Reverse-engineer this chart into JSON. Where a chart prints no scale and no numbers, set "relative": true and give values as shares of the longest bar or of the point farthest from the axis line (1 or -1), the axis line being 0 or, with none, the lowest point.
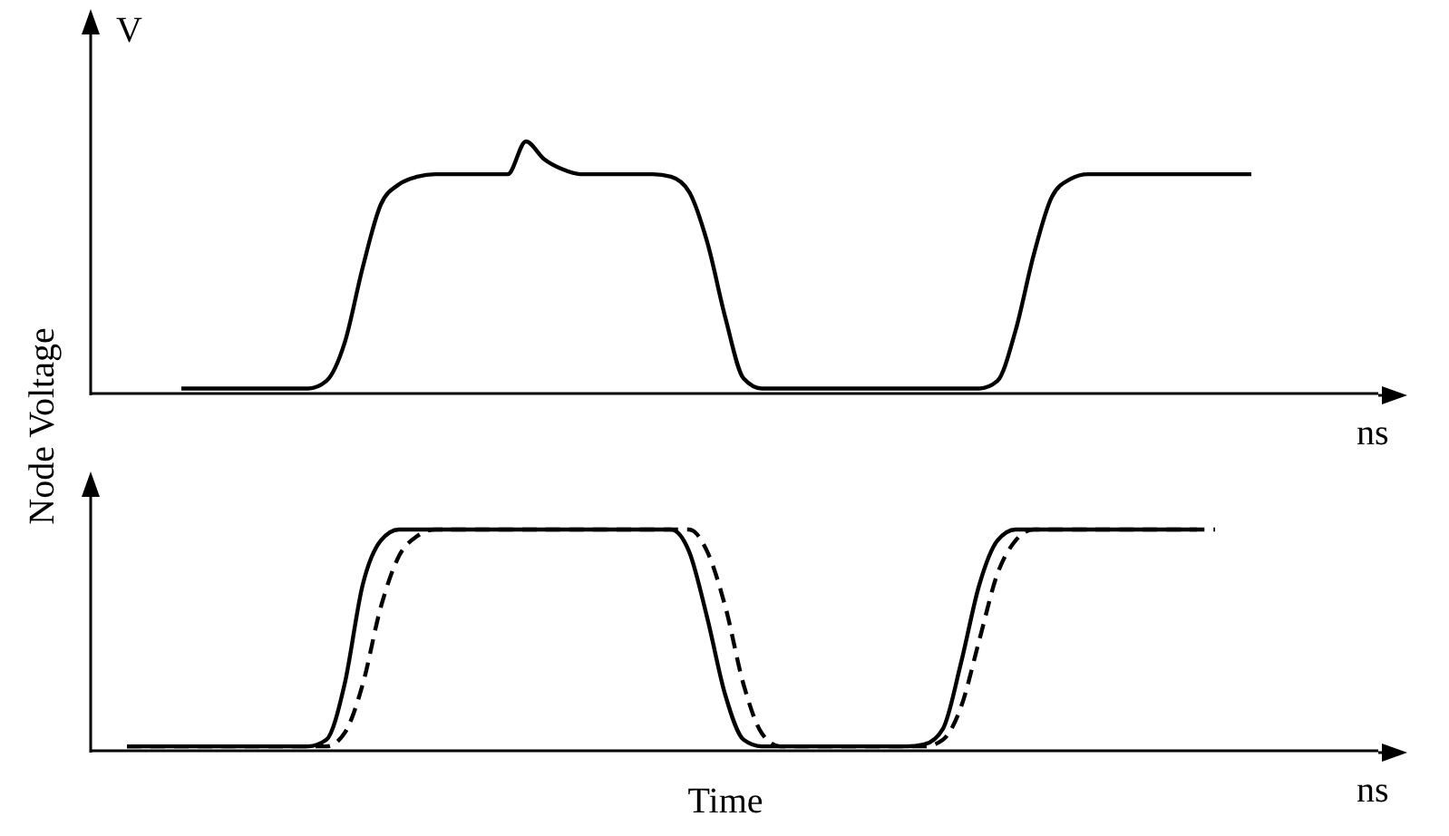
{
  "chart_data": [
    {
      "type": "line",
      "relative": true,
      "marker": "none",
      "xlabel": "ns",
      "ylabel": "Node Voltage",
      "annotations": [
        "V"
      ],
      "categories": [
        null,
        null,
        null,
        null,
        null,
        null,
        null,
        null,
        null,
        null,
        null,
        null,
        null,
        null,
        null,
        null,
        null,
        null,
        null,
        null,
        null,
        null,
        null,
        null,
        null,
        null,
        null,
        null,
        null,
        null,
        null,
        null,
        null,
        null,
        null,
        null,
        null,
        null,
        null,
        null,
        null,
        null,
        null,
        null,
        null,
        null,
        null,
        null,
        null,
        null,
        null,
        null,
        null,
        null,
        null,
        null,
        null,
        null,
        null,
        null,
        null,
        null,
        null,
        null,
        null,
        null,
        null,
        null,
        null,
        null
      ],
      "series": [
        {
          "color": "#000000",
          "line_style": "solid",
          "values": [
            null,
            null,
            null,
            null,
            0.02,
            0.02,
            0.02,
            0.02,
            0.02,
            0.02,
            0.02,
            0.02,
            0.05,
            0.2,
            0.5,
            0.75,
            0.83,
            0.86,
            0.87,
            0.87,
            0.87,
            0.87,
            0.87,
            1,
            0.93,
            0.89,
            0.87,
            0.87,
            0.87,
            0.87,
            0.87,
            0.86,
            0.8,
            0.6,
            0.3,
            0.06,
            0.02,
            0.02,
            0.02,
            0.02,
            0.02,
            0.02,
            0.02,
            0.02,
            0.02,
            0.02,
            0.02,
            0.02,
            0.02,
            0.05,
            0.25,
            0.55,
            0.78,
            0.85,
            0.87,
            0.87,
            0.87,
            0.87,
            0.87,
            0.87,
            0.87,
            0.87,
            0.87,
            0.87,
            null,
            null,
            null,
            null,
            null,
            null
          ]
        }
      ]
    },
    {
      "type": "line",
      "relative": true,
      "marker": "none",
      "xlabel": "ns",
      "annotations": [
        "Time"
      ],
      "categories": [
        null,
        null,
        null,
        null,
        null,
        null,
        null,
        null,
        null,
        null,
        null,
        null,
        null,
        null,
        null,
        null,
        null,
        null,
        null,
        null,
        null,
        null,
        null,
        null,
        null,
        null,
        null,
        null,
        null,
        null,
        null,
        null,
        null,
        null,
        null,
        null,
        null,
        null,
        null,
        null,
        null,
        null,
        null,
        null,
        null,
        null,
        null,
        null,
        null,
        null,
        null,
        null,
        null,
        null,
        null,
        null,
        null,
        null,
        null,
        null,
        null,
        null,
        null,
        null,
        null,
        null,
        null,
        null,
        null,
        null
      ],
      "series": [
        {
          "color": "#000000",
          "line_style": "solid",
          "values": [
            null,
            0.02,
            0.02,
            0.02,
            0.02,
            0.02,
            0.02,
            0.02,
            0.02,
            0.02,
            0.02,
            0.02,
            0.05,
            0.3,
            0.75,
            0.95,
            1,
            1,
            1,
            1,
            1,
            1,
            1,
            1,
            1,
            1,
            1,
            1,
            1,
            1,
            1,
            1,
            0.9,
            0.6,
            0.25,
            0.05,
            0.02,
            0.02,
            0.02,
            0.02,
            0.02,
            0.02,
            0.02,
            0.02,
            0.02,
            0.03,
            0.1,
            0.4,
            0.75,
            0.95,
            1,
            1,
            1,
            1,
            1,
            1,
            1,
            1,
            1,
            1,
            1,
            null,
            null,
            null,
            null,
            null,
            null,
            null,
            null,
            null
          ]
        },
        {
          "color": "#000000",
          "line_style": "dashed",
          "values": [
            null,
            0.02,
            0.02,
            0.02,
            0.02,
            0.02,
            0.02,
            0.02,
            0.02,
            0.02,
            0.02,
            0.02,
            0.02,
            0.08,
            0.3,
            0.65,
            0.88,
            0.97,
            1,
            1,
            1,
            1,
            1,
            1,
            1,
            1,
            1,
            1,
            1,
            1,
            1,
            1,
            1,
            0.9,
            0.65,
            0.3,
            0.08,
            0.02,
            0.02,
            0.02,
            0.02,
            0.02,
            0.02,
            0.02,
            0.02,
            0.02,
            0.05,
            0.2,
            0.5,
            0.8,
            0.95,
            1,
            1,
            1,
            1,
            1,
            1,
            1,
            1,
            1,
            1,
            1,
            null,
            null,
            null,
            null,
            null,
            null,
            null,
            null
          ]
        }
      ]
    }
  ]
}
